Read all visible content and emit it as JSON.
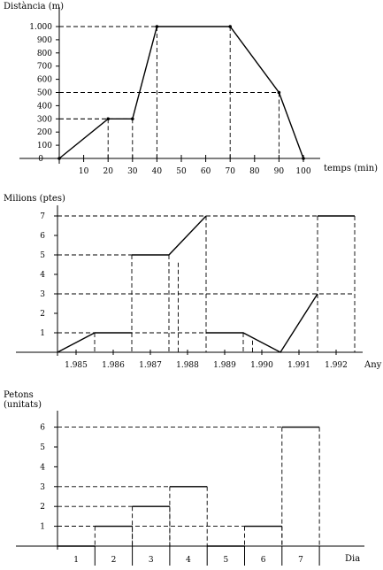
{
  "chart_data": [
    {
      "type": "line",
      "title": "",
      "ylabel": "Distància (m)",
      "xlabel": "temps (min)",
      "x_ticks": [
        10,
        20,
        30,
        40,
        50,
        60,
        70,
        80,
        90,
        100
      ],
      "y_ticks": [
        100,
        200,
        300,
        400,
        500,
        600,
        700,
        800,
        900,
        1000
      ],
      "y_tick_labels": [
        "100",
        "200",
        "300",
        "400",
        "500",
        "600",
        "700",
        "800",
        "900",
        "1.000"
      ],
      "origin_label": "0",
      "xlim": [
        0,
        110
      ],
      "ylim": [
        0,
        1100
      ],
      "series": [
        {
          "x": [
            0,
            20,
            30,
            40,
            70,
            90,
            100
          ],
          "y": [
            0,
            300,
            300,
            1000,
            1000,
            500,
            0
          ]
        }
      ],
      "guides": [
        {
          "x": 20,
          "y": 300
        },
        {
          "x": 30,
          "y": 300
        },
        {
          "x": 40,
          "y": 1000
        },
        {
          "x": 70,
          "y": 1000
        },
        {
          "x": 90,
          "y": 500
        }
      ],
      "grid": false
    },
    {
      "type": "line",
      "title": "",
      "ylabel": "Milions (ptes)",
      "xlabel": "Any",
      "x_categories": [
        "1.985",
        "1.986",
        "1.987",
        "1.988",
        "1.989",
        "1.990",
        "1.991",
        "1.992"
      ],
      "y_ticks": [
        1,
        2,
        3,
        4,
        5,
        6,
        7
      ],
      "ylim": [
        0,
        7.6
      ],
      "xlim": [
        1984.5,
        1993.2
      ],
      "segments": [
        {
          "x": [
            1984.5,
            1985.5,
            1986.5
          ],
          "y": [
            0,
            1,
            1
          ]
        },
        {
          "x": [
            1986.5,
            1987.5,
            1988.5
          ],
          "y": [
            5,
            5,
            7
          ]
        },
        {
          "x": [
            1988.5,
            1989.5,
            1990.5,
            1991.5
          ],
          "y": [
            1,
            1,
            0,
            3
          ]
        },
        {
          "x": [
            1991.5,
            1992.5
          ],
          "y": [
            7,
            7
          ]
        }
      ],
      "vguides": [
        {
          "x": 1985.5,
          "y": 1
        },
        {
          "x": 1986.5,
          "y": 5
        },
        {
          "x": 1987.5,
          "y": 5
        },
        {
          "x": 1987.75,
          "y": 4.6
        },
        {
          "x": 1988.5,
          "y": 7
        },
        {
          "x": 1989.5,
          "y": 1
        },
        {
          "x": 1989.75,
          "y": 0.6
        },
        {
          "x": 1991.5,
          "y": 7
        },
        {
          "x": 1992.5,
          "y": 7
        }
      ],
      "hguides": [
        {
          "y": 1,
          "x_to": 1988.5
        },
        {
          "y": 3,
          "x_to": 1992.5
        },
        {
          "y": 5,
          "x_to": 1986.5
        },
        {
          "y": 7,
          "x_to": 1992.5
        }
      ],
      "grid": false
    },
    {
      "type": "step",
      "title": "",
      "ylabel": "Petons (unitats)",
      "ylabel_lines": [
        "Petons",
        "(unitats)"
      ],
      "xlabel": "Dia",
      "x_categories": [
        "1",
        "2",
        "3",
        "4",
        "5",
        "6",
        "7"
      ],
      "y_ticks": [
        1,
        2,
        3,
        4,
        5,
        6
      ],
      "ylim": [
        0,
        7
      ],
      "values": [
        0,
        1,
        2,
        3,
        0,
        1,
        6
      ],
      "grid": false
    }
  ]
}
